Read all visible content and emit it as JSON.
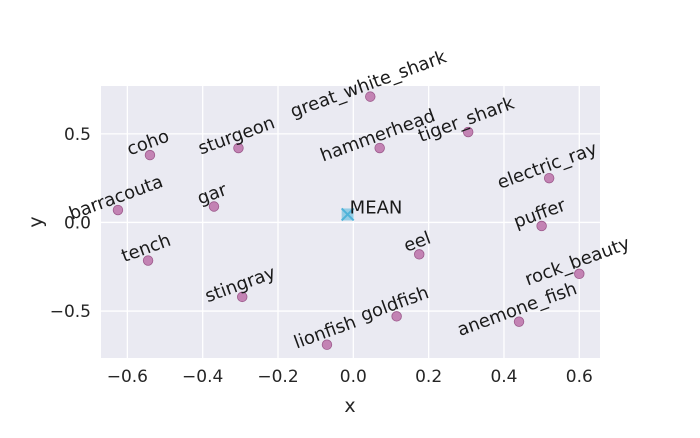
{
  "chart_data": {
    "type": "scatter",
    "xlabel": "x",
    "ylabel": "y",
    "xlim": [
      -0.67,
      0.655
    ],
    "ylim": [
      -0.765,
      0.77
    ],
    "xticks": [
      -0.6,
      -0.4,
      -0.2,
      0.0,
      0.2,
      0.4,
      0.6
    ],
    "xtick_labels": [
      "−0.6",
      "−0.4",
      "−0.2",
      "0.0",
      "0.2",
      "0.4",
      "0.6"
    ],
    "yticks": [
      -0.5,
      0.0,
      0.5
    ],
    "ytick_labels": [
      "−0.5",
      "0.0",
      "0.5"
    ],
    "grid": true,
    "background": "#eaeaf2",
    "point_color": "#c17db0",
    "mean_color": "#4fb3d9",
    "label_rotation_deg": -20,
    "points": [
      {
        "label": "great_white_shark",
        "x": 0.045,
        "y": 0.71
      },
      {
        "label": "coho",
        "x": -0.54,
        "y": 0.38
      },
      {
        "label": "sturgeon",
        "x": -0.305,
        "y": 0.42
      },
      {
        "label": "hammerhead",
        "x": 0.07,
        "y": 0.42
      },
      {
        "label": "tiger_shark",
        "x": 0.305,
        "y": 0.51
      },
      {
        "label": "electric_ray",
        "x": 0.52,
        "y": 0.25
      },
      {
        "label": "barracouta",
        "x": -0.625,
        "y": 0.07
      },
      {
        "label": "gar",
        "x": -0.37,
        "y": 0.09
      },
      {
        "label": "puffer",
        "x": 0.5,
        "y": -0.02
      },
      {
        "label": "tench",
        "x": -0.545,
        "y": -0.215
      },
      {
        "label": "eel",
        "x": 0.175,
        "y": -0.18
      },
      {
        "label": "rock_beauty",
        "x": 0.6,
        "y": -0.29
      },
      {
        "label": "stingray",
        "x": -0.295,
        "y": -0.42
      },
      {
        "label": "lionfish",
        "x": -0.07,
        "y": -0.69
      },
      {
        "label": "goldfish",
        "x": 0.115,
        "y": -0.53
      },
      {
        "label": "anemone_fish",
        "x": 0.44,
        "y": -0.56
      }
    ],
    "mean": {
      "label": "MEAN",
      "x": -0.015,
      "y": 0.045
    }
  }
}
